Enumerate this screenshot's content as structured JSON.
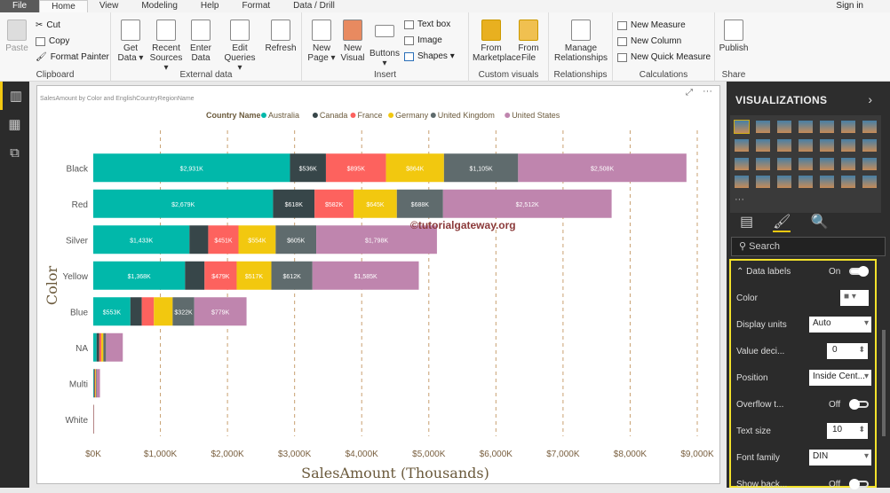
{
  "menu": {
    "tabs": [
      "File",
      "Home",
      "View",
      "Modeling",
      "Help",
      "Format",
      "Data / Drill"
    ],
    "active": "Home",
    "signin": "Sign in"
  },
  "ribbon": {
    "clipboard": {
      "label": "Clipboard",
      "paste": "Paste",
      "cut": "Cut",
      "copy": "Copy",
      "format_painter": "Format Painter"
    },
    "external": {
      "label": "External data",
      "get_data": "Get Data ▾",
      "recent": "Recent Sources ▾",
      "enter": "Enter Data",
      "edit": "Edit Queries ▾",
      "refresh": "Refresh"
    },
    "insert": {
      "label": "Insert",
      "new_page": "New Page ▾",
      "new_visual": "New Visual",
      "buttons": "Buttons ▾",
      "text_box": "Text box",
      "image": "Image",
      "shapes": "Shapes ▾"
    },
    "custom": {
      "label": "Custom visuals",
      "marketplace": "From Marketplace",
      "file": "From File"
    },
    "relationships": {
      "label": "Relationships",
      "manage": "Manage Relationships"
    },
    "calculations": {
      "label": "Calculations",
      "measure": "New Measure",
      "column": "New Column",
      "quick": "New Quick Measure"
    },
    "share": {
      "label": "Share",
      "publish": "Publish"
    }
  },
  "viz": {
    "title": "VISUALIZATIONS",
    "search_placeholder": "Search",
    "props": {
      "data_labels": "Data labels",
      "data_labels_state": "On",
      "color": "Color",
      "display_units": "Display units",
      "display_units_value": "Auto",
      "value_decimals": "Value deci...",
      "value_decimals_value": "0",
      "position": "Position",
      "position_value": "Inside Cent...",
      "overflow": "Overflow t...",
      "overflow_state": "Off",
      "text_size": "Text size",
      "text_size_value": "10",
      "font_family": "Font family",
      "font_family_value": "DIN",
      "show_background": "Show back...",
      "show_background_state": "Off"
    }
  },
  "watermark": "©tutorialgateway.org",
  "colors": {
    "Australia": "#01b8aa",
    "Canada": "#374649",
    "France": "#fd625e",
    "Germany": "#f2c80f",
    "United Kingdom": "#5f6b6d",
    "United States": "#bf85ae",
    "accent": "#f2c811"
  },
  "chart_data": {
    "type": "bar",
    "orientation": "horizontal",
    "stacked": true,
    "title": "SalesAmount by Color and EnglishCountryRegionName",
    "legend_title": "Country Name",
    "legend_position": "top",
    "xlabel": "SalesAmount (Thousands)",
    "ylabel": "Color",
    "xlim": [
      0,
      9000
    ],
    "xticks": [
      "$0K",
      "$1,000K",
      "$2,000K",
      "$3,000K",
      "$4,000K",
      "$5,000K",
      "$6,000K",
      "$7,000K",
      "$8,000K",
      "$9,000K"
    ],
    "grid": "vertical dashed",
    "categories": [
      "Black",
      "Red",
      "Silver",
      "Yellow",
      "Blue",
      "NA",
      "Multi",
      "White"
    ],
    "series": [
      {
        "name": "Australia",
        "values": [
          2931,
          2679,
          1433,
          1368,
          553,
          50,
          10,
          1
        ],
        "labels": [
          "$2,931K",
          "$2,679K",
          "$1,433K",
          "$1,368K",
          "$553K",
          null,
          null,
          null
        ]
      },
      {
        "name": "Canada",
        "values": [
          536,
          618,
          280,
          290,
          170,
          40,
          10,
          1
        ],
        "labels": [
          "$536K",
          "$618K",
          null,
          null,
          null,
          null,
          null,
          null
        ]
      },
      {
        "name": "France",
        "values": [
          895,
          582,
          451,
          479,
          180,
          30,
          10,
          1
        ],
        "labels": [
          "$895K",
          "$582K",
          "$451K",
          "$479K",
          null,
          null,
          null,
          null
        ]
      },
      {
        "name": "Germany",
        "values": [
          864,
          645,
          554,
          517,
          280,
          30,
          10,
          1
        ],
        "labels": [
          "$864K",
          "$645K",
          "$554K",
          "$517K",
          null,
          null,
          null,
          null
        ]
      },
      {
        "name": "United Kingdom",
        "values": [
          1105,
          688,
          605,
          612,
          322,
          40,
          10,
          1
        ],
        "labels": [
          "$1,105K",
          "$688K",
          "$605K",
          "$612K",
          "$322K",
          null,
          null,
          null
        ]
      },
      {
        "name": "United States",
        "values": [
          2508,
          2512,
          1798,
          1585,
          779,
          250,
          50,
          2
        ],
        "labels": [
          "$2,508K",
          "$2,512K",
          "$1,798K",
          "$1,585K",
          "$779K",
          null,
          null,
          null
        ]
      }
    ]
  }
}
